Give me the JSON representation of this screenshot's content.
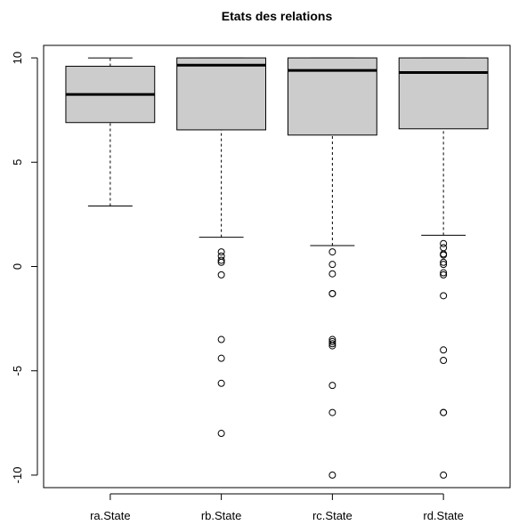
{
  "chart_data": {
    "type": "boxplot",
    "title": "Etats des relations",
    "xlabel": "",
    "ylabel": "",
    "ylim": [
      -10.6,
      10.6
    ],
    "yticks": [
      10,
      5,
      0,
      -5,
      -10
    ],
    "grid": false,
    "box_color": "#cccccc",
    "categories": [
      "ra.State",
      "rb.State",
      "rc.State",
      "rd.State"
    ],
    "boxes": [
      {
        "name": "ra.State",
        "whisker_low": 2.9,
        "q1": 6.9,
        "median": 8.25,
        "q3": 9.6,
        "whisker_high": 10,
        "outliers": []
      },
      {
        "name": "rb.State",
        "whisker_low": 1.4,
        "q1": 6.55,
        "median": 9.65,
        "q3": 10,
        "whisker_high": 10,
        "outliers": [
          0.7,
          0.5,
          0.3,
          0.2,
          -0.4,
          -3.5,
          -4.4,
          -5.6,
          -8.0
        ]
      },
      {
        "name": "rc.State",
        "whisker_low": 1.0,
        "q1": 6.3,
        "median": 9.4,
        "q3": 10,
        "whisker_high": 10,
        "outliers": [
          0.7,
          0.1,
          -0.35,
          -1.3,
          -1.3,
          -3.5,
          -3.6,
          -3.7,
          -3.8,
          -5.7,
          -7.0,
          -10.0
        ]
      },
      {
        "name": "rd.State",
        "whisker_low": 1.5,
        "q1": 6.6,
        "median": 9.3,
        "q3": 10,
        "whisker_high": 10,
        "outliers": [
          1.1,
          0.9,
          0.6,
          0.55,
          0.2,
          0.1,
          -0.3,
          -0.4,
          -1.4,
          -4.0,
          -4.5,
          -7.0,
          -7.0,
          -10.0
        ]
      }
    ]
  }
}
